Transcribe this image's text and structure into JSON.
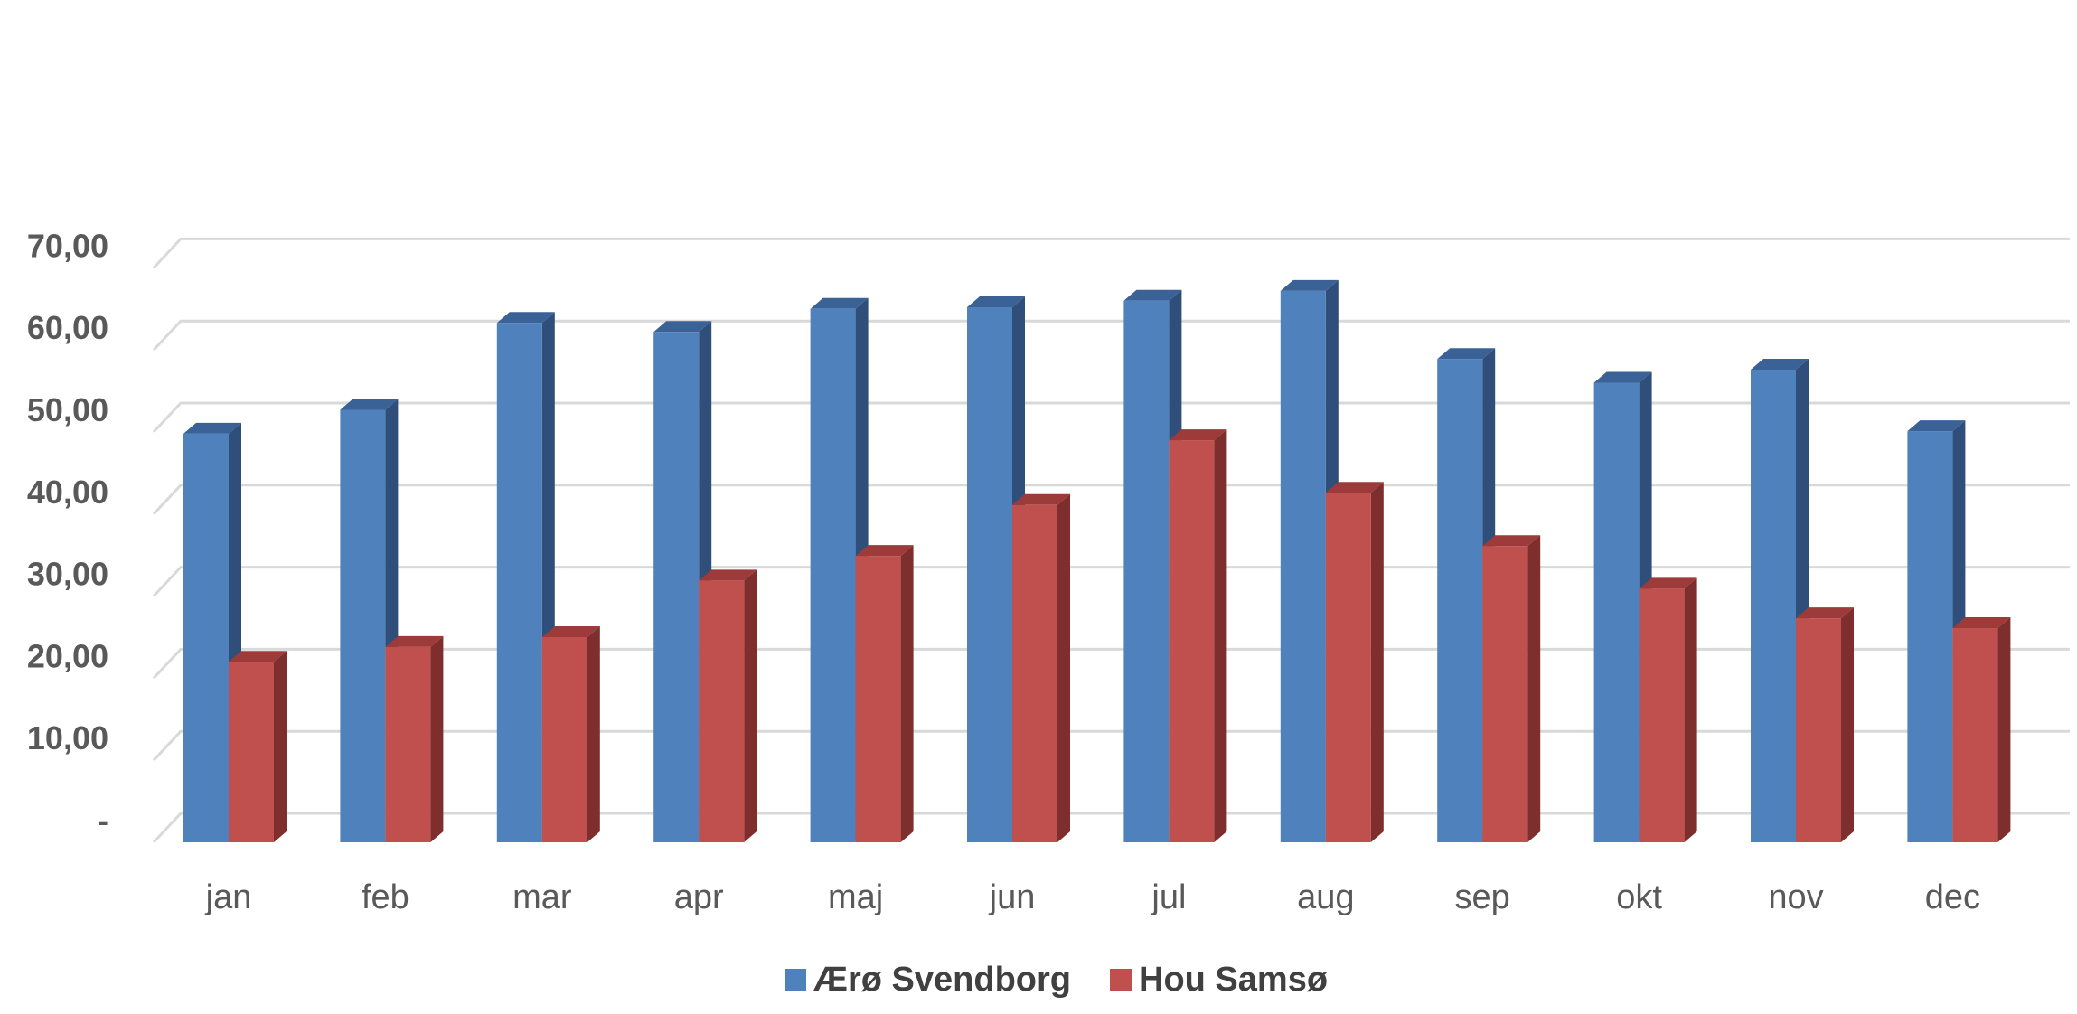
{
  "chart_data": {
    "type": "bar",
    "categories": [
      "jan",
      "feb",
      "mar",
      "apr",
      "maj",
      "jun",
      "jul",
      "aug",
      "sep",
      "okt",
      "nov",
      "dec"
    ],
    "series": [
      {
        "name": "Ærø Svendborg",
        "color": "#4F81BD",
        "side_color": "#2F4F7A",
        "top_color": "#3A6296",
        "values": [
          49.8,
          52.7,
          63.3,
          62.2,
          65.0,
          65.2,
          66.0,
          67.2,
          58.9,
          56.0,
          57.6,
          50.1
        ]
      },
      {
        "name": "Hou Samsø",
        "color": "#C0504D",
        "side_color": "#7E2E2C",
        "top_color": "#9C3B39",
        "values": [
          22.0,
          23.8,
          25.0,
          31.9,
          34.9,
          41.1,
          49.0,
          42.6,
          36.1,
          30.9,
          27.3,
          26.1
        ]
      }
    ],
    "ylim": [
      0,
      70
    ],
    "y_tick_labels": [
      "-",
      "10,00",
      "20,00",
      "30,00",
      "40,00",
      "50,00",
      "60,00",
      "70,00"
    ],
    "grid": true,
    "legend": "bottom",
    "style": "3d-clustered-column"
  }
}
